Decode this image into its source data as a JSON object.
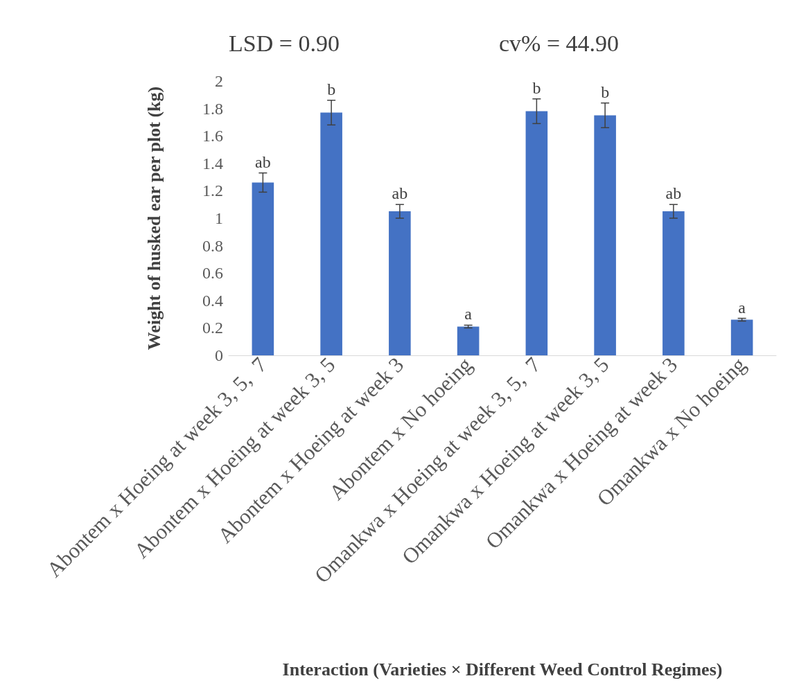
{
  "chart_data": {
    "type": "bar",
    "xlabel": "Interaction (Varieties × Different Weed Control Regimes)",
    "ylabel": "Weight of husked ear per plot (kg)",
    "categories": [
      "Abontem x Hoeing at week 3, 5,  7",
      "Abontem x Hoeing at week 3, 5",
      "Abontem x Hoeing at week 3",
      "Abontem x No hoeing",
      "Omankwa x Hoeing at week 3, 5,  7",
      "Omankwa x Hoeing at week 3, 5",
      "Omankwa x Hoeing at week 3",
      "Omankwa x No hoeing"
    ],
    "values": [
      1.26,
      1.77,
      1.05,
      0.21,
      1.78,
      1.75,
      1.05,
      0.26
    ],
    "errors": [
      0.07,
      0.09,
      0.05,
      0.01,
      0.09,
      0.09,
      0.05,
      0.01
    ],
    "color": "#4472c4",
    "ylim": [
      0,
      2
    ],
    "yticks": [
      0,
      0.2,
      0.4,
      0.6,
      0.8,
      1,
      1.2,
      1.4,
      1.6,
      1.8,
      2
    ],
    "grid": false,
    "annotations": [
      "LSD = 0.90",
      "cv% = 44.90",
      {
        "text": "ab",
        "x": "Abontem x Hoeing at week 3, 5,  7",
        "y": 1.33
      },
      {
        "text": "b",
        "x": "Abontem x Hoeing at week 3, 5",
        "y": 1.86
      },
      {
        "text": "ab",
        "x": "Abontem x Hoeing at week 3",
        "y": 1.1
      },
      {
        "text": "a",
        "x": "Abontem x No hoeing",
        "y": 0.22
      },
      {
        "text": "b",
        "x": "Omankwa x Hoeing at week 3, 5,  7",
        "y": 1.87
      },
      {
        "text": "b",
        "x": "Omankwa x Hoeing at week 3, 5",
        "y": 1.84
      },
      {
        "text": "ab",
        "x": "Omankwa x Hoeing at week 3",
        "y": 1.1
      },
      {
        "text": "a",
        "x": "Omankwa x No hoeing",
        "y": 0.27
      }
    ]
  }
}
